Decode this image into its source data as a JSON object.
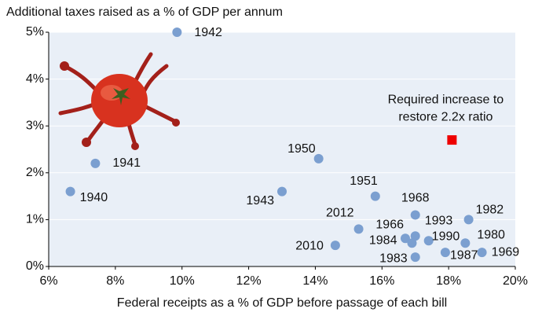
{
  "chart_data": {
    "type": "scatter",
    "title": "Additional taxes raised as a % of GDP per annum",
    "x_label": "Federal receipts as a % of GDP before passage of each bill",
    "labels": [
      "1942",
      "1941",
      "1940",
      "1950",
      "1943",
      "1951",
      "2012",
      "2010",
      "1968",
      "1982",
      "1993",
      "1966",
      "1984",
      "1990",
      "1980",
      "1987",
      "1983",
      "1969"
    ],
    "x": [
      9.85,
      7.4,
      6.65,
      14.1,
      13.0,
      15.8,
      15.3,
      14.6,
      17.0,
      18.6,
      17.0,
      16.7,
      16.9,
      17.4,
      18.5,
      17.9,
      17.0,
      19.0
    ],
    "values": [
      5.0,
      2.2,
      1.6,
      2.3,
      1.6,
      1.5,
      0.8,
      0.45,
      1.1,
      1.0,
      0.65,
      0.6,
      0.5,
      0.55,
      0.5,
      0.3,
      0.2,
      0.3
    ],
    "color": "#7b9fd0",
    "annotation": {
      "text": [
        "Required increase to",
        "restore 2.2x ratio"
      ],
      "x": 18.1,
      "y": 2.7,
      "color": "#ee0000"
    },
    "xlim": [
      6,
      20
    ],
    "ylim": [
      0,
      5
    ],
    "xticks": [
      {
        "value": 6,
        "label": "6%"
      },
      {
        "value": 8,
        "label": "8%"
      },
      {
        "value": 10,
        "label": "10%"
      },
      {
        "value": 12,
        "label": "12%"
      },
      {
        "value": 14,
        "label": "14%"
      },
      {
        "value": 16,
        "label": "16%"
      },
      {
        "value": 18,
        "label": "18%"
      },
      {
        "value": 20,
        "label": "20%"
      }
    ],
    "yticks": [
      {
        "value": 0,
        "label": "0%"
      },
      {
        "value": 1,
        "label": "1%"
      },
      {
        "value": 2,
        "label": "2%"
      },
      {
        "value": 3,
        "label": "3%"
      },
      {
        "value": 4,
        "label": "4%"
      },
      {
        "value": 5,
        "label": "5%"
      }
    ],
    "grid": true
  }
}
